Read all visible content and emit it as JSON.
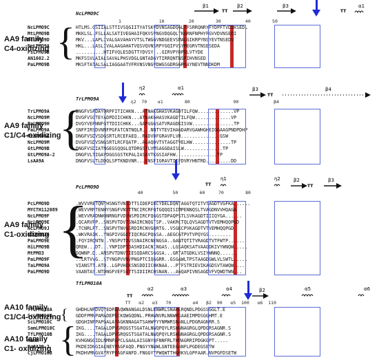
{
  "blocks": [
    {
      "id": "b1",
      "ref": "NcLPMO9C",
      "family_lines": [
        "AA9 family",
        "C4-oxidizing"
      ],
      "ticks": "1              10         20        30         40        50",
      "ss_labels": [
        "β1",
        "TT",
        "β2",
        "β3",
        "TT",
        "α1"
      ],
      "rows": [
        {
          "name": "NcLPMO9C",
          "seq": "HTLMS.GSIIALSTTIVSQGIITYATSKVDVNSAGDQGLTFSRRQNRYFYDPFTVDSKSEDL"
        },
        {
          "name": "MtLPMO9B",
          "seq": "MKKLSL.FSLLALSATIVEGHAIFQKVSVNGVDQGQLTKGRNFNPHYFGVVDVNSEDI"
        },
        {
          "name": "NcLPMO9D",
          "seq": "MKV...LAPLIVALGAVAHAYVTSLTWGGVNDGEEVSMALGIKRPYNSYEVTNSEDV"
        },
        {
          "name": "NcLPMO9A",
          "seq": "HKL...LASLIVALAAGAHATVQSVQVNSRPYGQIFVSYMEGRVTNSESEDA"
        },
        {
          "name": "PsLPMO9B",
          "seq": "..........HTIFVQLESDGTTYDVSY...GIRVPYDPDLVTYDE"
        },
        {
          "name": "AN1602.2",
          "seq": "MKFSSVLAIALSAVALPHSVDGLGNTADGYTIRRQNTNSPIHVNSED"
        },
        {
          "name": "PaLPMO9B",
          "seq": "MKSFTATALSALIAGGAATVFRVNSVNGVDWGSGDRGGRYAYNEVTNNDKDM"
        }
      ],
      "blue_arrow_label": "▼"
    },
    {
      "id": "b2",
      "ref": "TrLPMO9A",
      "family_lines": [
        "AA9 family",
        "C1/C4-oxidizing"
      ],
      "ticks": "   η2  70    α1        80                90             β4",
      "ss_labels": [
        "η2",
        "α1",
        "β3",
        "TT",
        "β4"
      ],
      "rows": [
        {
          "name": "TrLPMO9A",
          "seq": "DNGFVSPDAYQRPFITICHKN...ATNAKGHASVKAGDTILFQW.............VP"
        },
        {
          "name": "NcLPMO9M",
          "seq": "DVGFVSGTEYADPDIICHKN...ATNAKGHASVKAGDTILFQW.............VP"
        },
        {
          "name": "PaLPMO9H",
          "seq": "DVGYVEPNNFGTTDIICHKK...GAPGGGSATVRAGDKISVW...............TP"
        },
        {
          "name": "PaLPMO9A",
          "seq": "SNFFIRSDVNNFPGFATCNTNQLR...NNTYTEVIHAGDARVGAWHGHEIGGAAGPNDPDHP"
        },
        {
          "name": "MtLPMO9A",
          "seq": "DNGFVSDVSDGSRTLRCEFAEQ..RADVDFGRAVFLVR..............GSW"
        },
        {
          "name": "NcLPMO9M",
          "seq": "DVGFVSDVSNGSRTLRCFQATP..AGAQDVTVTAGGTVELHW..............TP"
        },
        {
          "name": "GtLPMO9B",
          "seq": "DNGFVSDIATNGEGSQQGLQTDRGSTLVMSAGGDAISLW..............TP"
        },
        {
          "name": "GtLPMO9A-2",
          "seq": "DNGFVLTIGAVDGGSGSTKPALIASAVTKGSIAFHW...............TP"
        },
        {
          "name": "LsAA9A",
          "seq": "DNGFVSLTLDDQLSPTKNDVNR...VNSFIGRAVTIIFDVRYHNTRD.........DD"
        }
      ],
      "blue_arrow_label": "▼"
    },
    {
      "id": "b3",
      "ref": "PcLPMO9D",
      "family_lines": [
        "AA9 family",
        "C1-oxidizing"
      ],
      "ticks": "     40           50        60     70        80",
      "ss_labels": [
        "TT",
        "η1",
        "η2",
        "β2",
        "TT",
        "β3"
      ],
      "rows": [
        {
          "name": "PcLPMO9D",
          "seq": ".WVVVRETQNYHSNGTVNIDTTSIDEPIRCYDELDQNTAGGTQTITVTAGDTVGFKA......"
        },
        {
          "name": "MYCTH112089",
          "seq": ".WEVVRMTENHYSNGFVNVTTNCIRCRFQTGQQQISIMPENNQSLTVAGDNVVHQAGA"
        },
        {
          "name": "NcLPMO9F",
          "seq": ".WEVVRADNWQNRNGFVDVNSPDIRCFQGGSTDPAQPSTLSVKAGDTIIIQYGA......"
        },
        {
          "name": "NcLPMO9E",
          "seq": ".QCARVPP..SNSPVTDVTSNAIRCNQGTSP..VAKRCTQLQVSAGDTVTVEMHQQPGD"
        },
        {
          "name": "NcLPMO9J",
          "seq": ".TCNRLPT..SNSPVTNVGSRDIRCNVGQRTG..VSGKCPVKAGDTVTVEMHQQPGD"
        },
        {
          "name": "NCU08836",
          "seq": ".WKVRAIK..YNGPIVGGETIQCRGCPQGSA..AEGCGTPVTVPQYGS........"
        },
        {
          "name": "PaLPMO9E",
          "seq": ".FQYIRQNTN..YNSPVTDVSSNAIRCNENGSA..GANTQTITVRAGDTVTFWTP......"
        },
        {
          "name": "HiLPMO9B",
          "seq": "QREW...DT...YNPIDPTDASHDIACNINGAS..LGSAQKSATVAAGDKIVYWNQW....."
        },
        {
          "name": "MtPMO3",
          "seq": "DQWNP.D..ANSPVTDNVTIESQDARCSGGSA...GRTATGDKLVSIYWNNQ......"
        },
        {
          "name": "PaLPMO9F",
          "seq": "..LRTVVG..STYNGPVVNVPNGPTCIQGGRR..GSGAWLTPSTAAGDGWLVLSWTL....."
        },
        {
          "name": "TaLPMO9A",
          "seq": "VIANSTT.ATD..LGPVHEKSNSDDIICHKNAA...PTFSTRIEVIKAGDSVTAWQW...."
        },
        {
          "name": "PaLPMO9D",
          "seq": "VAANTAS.NTDNGFVEFSGTTSIDIIRCHSNAN...AGQAPIVNSAGDVFVQWDTWN..."
        }
      ],
      "blue_arrow_label": "▼"
    },
    {
      "id": "b4",
      "ref": "TfLPMO10A",
      "family_lines": [
        "AA10 family",
        "C1/C4-oxidizing",
        "AA10 family",
        "C1- oxidizing"
      ],
      "ticks": "   TT   α2   α3   70        α4   β2  90   α5  100   α6  110",
      "ss_labels": [
        "TT",
        "α2",
        "α3",
        "α4",
        "β2",
        "α5",
        "α6"
      ],
      "rows": [
        {
          "name": "TfLPMO10A",
          "seq": "GHDHLNPDVQYEDPAAQWNANGALDSNLRNWRLSNAHLRQNDLPDGSSGGLT.E"
        },
        {
          "name": "ScLPMO10B",
          "seq": "GDDFPMNPAMADEPECKQWGQDNL.PRHWNVRLNNWRSAAEIMPDSGGHMT.E"
        },
        {
          "name": "ScLPMO10C",
          "seq": "GDGHINPPAPGALAYAGKNNAGATSAHWVYYNMWRSNANLLPDGRAGNRR.S"
        },
        {
          "name": "SamLPMO10C",
          "seq": "IKG....TAGALDPVGRQGSTSGATALNWQPQYLRSWNNAGRGLQPDGRSAGNR.S"
        },
        {
          "name": "TfLPMO10B",
          "seq": "IKG....TAGALDPVGRQGSTSGATALNWQPQYLRSWNNAGRGLQPDGRSAGNR.S"
        },
        {
          "name": "ManA",
          "seq": "KVHGNGGIDLNMNPAPCLGAALAISGNYQFNNFRLTHMAGRRIPDGKGPT....."
        },
        {
          "name": "HcAA10-2",
          "seq": "PKDEIDNGIALNEYPAGFAQD.PNGYYNWWLGNTEEGANFLPGDEGSETW"
        },
        {
          "name": "CjLPMO10B",
          "seq": "PKDHVMNGVAYRYPFAGFANFD.FNGGYYPWQWTTHGRKVLGPFAAR.NVPGFDSETW"
        }
      ],
      "blue_arrow_label": "▼"
    }
  ]
}
